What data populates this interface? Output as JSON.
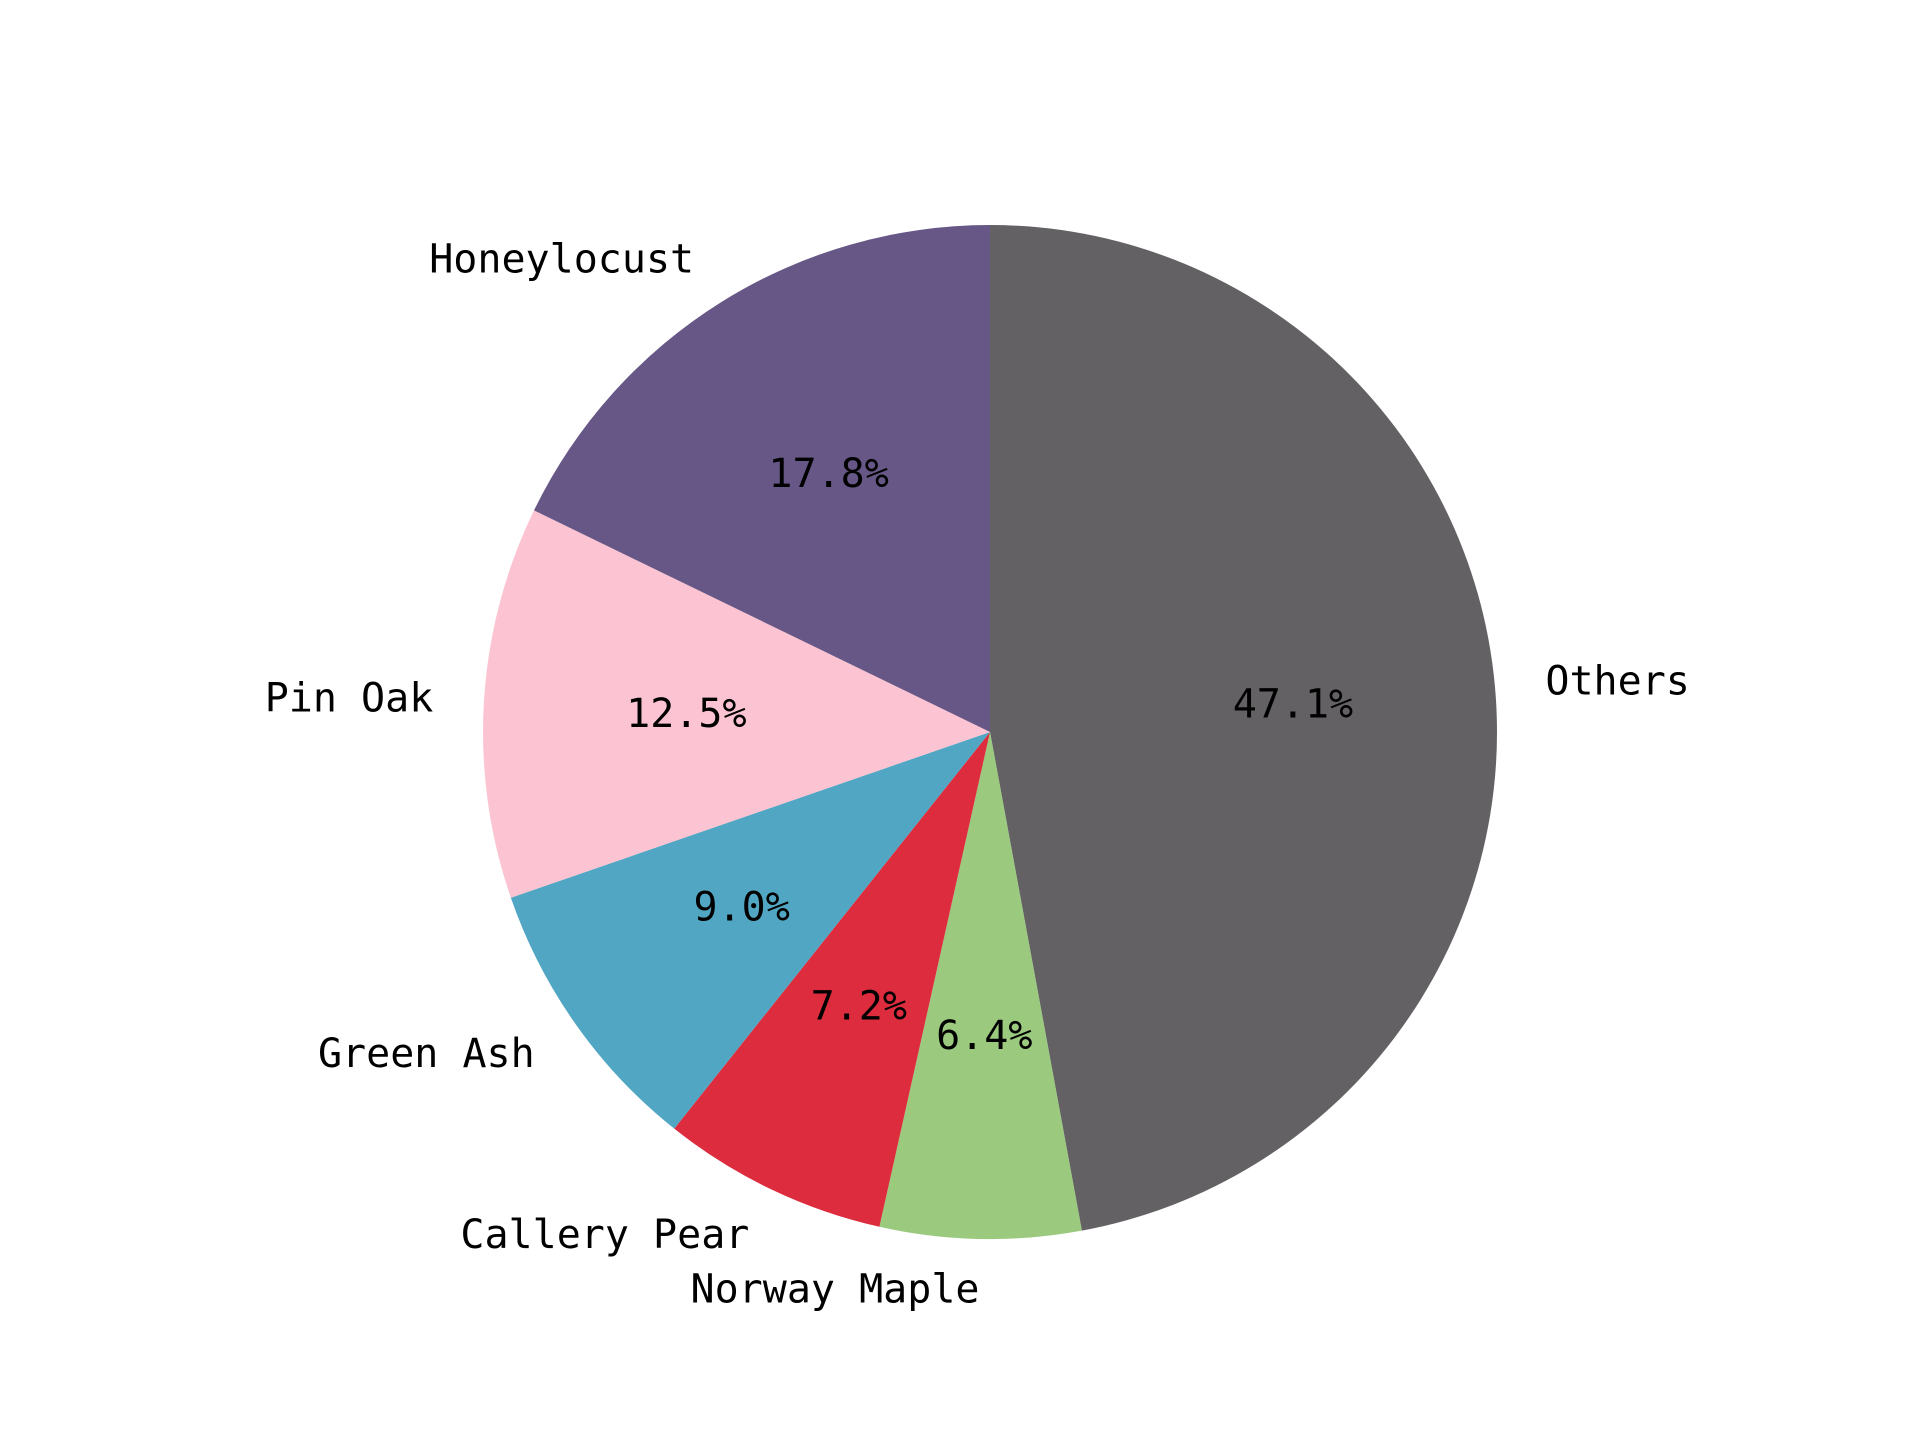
{
  "chart_data": {
    "type": "pie",
    "title": "",
    "categories": [
      "Others",
      "Norway Maple",
      "Callery Pear",
      "Green Ash",
      "Pin Oak",
      "Honeylocust"
    ],
    "values": [
      47.1,
      6.4,
      7.2,
      9.0,
      12.5,
      17.8
    ],
    "value_labels": [
      "47.1%",
      "6.4%",
      "7.2%",
      "9.0%",
      "12.5%",
      "17.8%"
    ],
    "colors": [
      "#636164",
      "#9bca7e",
      "#dc2c3d",
      "#51a7c3",
      "#fcc4d2",
      "#675786"
    ],
    "start_angle_deg": 90,
    "direction": "clockwise",
    "legend": "none"
  }
}
